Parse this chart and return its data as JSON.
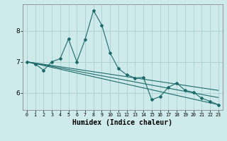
{
  "title": "",
  "xlabel": "Humidex (Indice chaleur)",
  "ylabel": "",
  "bg_color": "#ceeaea",
  "grid_color": "#afd4d4",
  "line_color": "#1e6b6b",
  "x_ticks": [
    0,
    1,
    2,
    3,
    4,
    5,
    6,
    7,
    8,
    9,
    10,
    11,
    12,
    13,
    14,
    15,
    16,
    17,
    18,
    19,
    20,
    21,
    22,
    23
  ],
  "y_ticks": [
    6,
    7,
    8
  ],
  "ylim": [
    5.45,
    8.85
  ],
  "xlim": [
    -0.5,
    23.5
  ],
  "series": [
    {
      "x": [
        0,
        1,
        2,
        3,
        4,
        5,
        6,
        7,
        8,
        9,
        10,
        11,
        12,
        13,
        14,
        15,
        16,
        17,
        18,
        19,
        20,
        21,
        22,
        23
      ],
      "y": [
        7.0,
        6.93,
        6.73,
        7.0,
        7.1,
        7.73,
        7.0,
        7.72,
        8.65,
        8.18,
        7.28,
        6.78,
        6.58,
        6.48,
        6.5,
        5.78,
        5.88,
        6.18,
        6.32,
        6.08,
        6.02,
        5.83,
        5.73,
        5.62
      ]
    },
    {
      "x": [
        0,
        23
      ],
      "y": [
        7.0,
        6.08
      ]
    },
    {
      "x": [
        0,
        23
      ],
      "y": [
        7.0,
        5.85
      ]
    },
    {
      "x": [
        0,
        23
      ],
      "y": [
        7.0,
        5.62
      ]
    }
  ]
}
